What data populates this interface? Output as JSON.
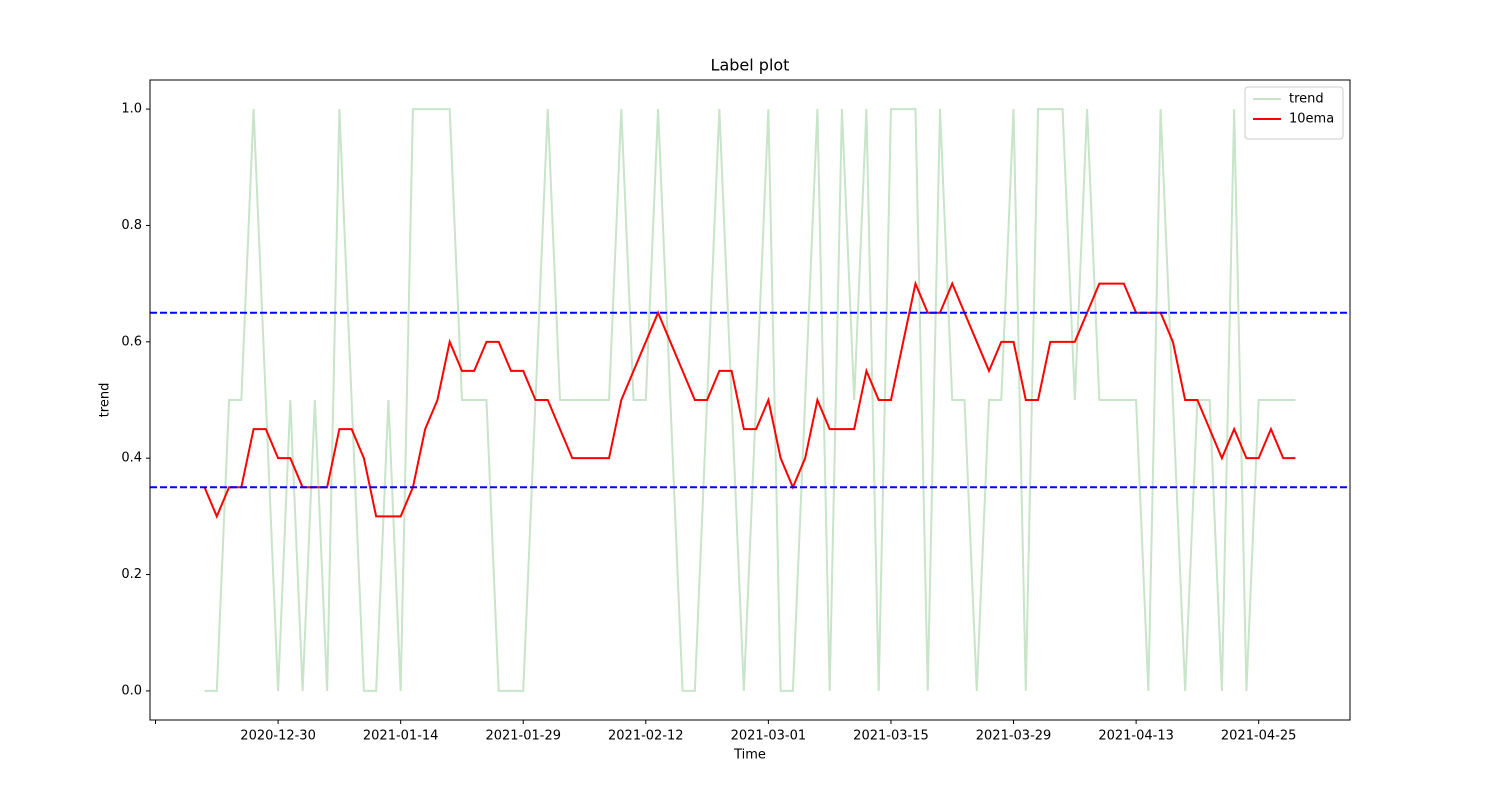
{
  "chart_data": {
    "type": "line",
    "title": "Label plot",
    "xlabel": "Time",
    "ylabel": "trend",
    "x": [
      0,
      1,
      2,
      3,
      4,
      5,
      6,
      7,
      8,
      9,
      10,
      11,
      12,
      13,
      14,
      15,
      16,
      17,
      18,
      19,
      20,
      21,
      22,
      23,
      24,
      25,
      26,
      27,
      28,
      29,
      30,
      31,
      32,
      33,
      34,
      35,
      36,
      37,
      38,
      39,
      40,
      41,
      42,
      43,
      44,
      45,
      46,
      47,
      48,
      49,
      50,
      51,
      52,
      53,
      54,
      55,
      56,
      57,
      58,
      59,
      60,
      61,
      62,
      63,
      64,
      65,
      66,
      67,
      68,
      69,
      70,
      71,
      72,
      73,
      74,
      75,
      76,
      77,
      78,
      79,
      80,
      81,
      82,
      83,
      84,
      85,
      86,
      87,
      88,
      89
    ],
    "series": [
      {
        "name": "trend",
        "color": "#c8e4c9",
        "values": [
          0,
          0,
          0.5,
          0.5,
          1,
          0.5,
          0,
          0.5,
          0,
          0.5,
          0,
          1,
          0.5,
          0,
          0,
          0.5,
          0,
          1,
          1,
          1,
          1,
          0.5,
          0.5,
          0.5,
          0,
          0,
          0,
          0.5,
          1,
          0.5,
          0.5,
          0.5,
          0.5,
          0.5,
          1,
          0.5,
          0.5,
          1,
          0.5,
          0,
          0,
          0.5,
          1,
          0.5,
          0,
          0.5,
          1,
          0,
          0,
          0.5,
          1,
          0,
          1,
          0.5,
          1,
          0,
          1,
          1,
          1,
          0,
          1,
          0.5,
          0.5,
          0,
          0.5,
          0.5,
          1,
          0,
          1,
          1,
          1,
          0.5,
          1,
          0.5,
          0.5,
          0.5,
          0.5,
          0,
          1,
          0.5,
          0,
          0.5,
          0.5,
          0,
          1,
          0,
          0.5,
          0.5,
          0.5,
          0.5
        ]
      },
      {
        "name": "10ema",
        "color": "#ff0000",
        "values": [
          0.35,
          0.3,
          0.35,
          0.35,
          0.45,
          0.45,
          0.4,
          0.4,
          0.35,
          0.35,
          0.35,
          0.45,
          0.45,
          0.4,
          0.3,
          0.3,
          0.3,
          0.35,
          0.45,
          0.5,
          0.6,
          0.55,
          0.55,
          0.6,
          0.6,
          0.55,
          0.55,
          0.5,
          0.5,
          0.45,
          0.4,
          0.4,
          0.4,
          0.4,
          0.5,
          0.55,
          0.6,
          0.65,
          0.6,
          0.55,
          0.5,
          0.5,
          0.55,
          0.55,
          0.45,
          0.45,
          0.5,
          0.4,
          0.35,
          0.4,
          0.5,
          0.45,
          0.45,
          0.45,
          0.55,
          0.5,
          0.5,
          0.6,
          0.7,
          0.65,
          0.65,
          0.7,
          0.65,
          0.6,
          0.55,
          0.6,
          0.6,
          0.5,
          0.5,
          0.6,
          0.6,
          0.6,
          0.65,
          0.7,
          0.7,
          0.7,
          0.65,
          0.65,
          0.65,
          0.6,
          0.5,
          0.5,
          0.45,
          0.4,
          0.45,
          0.4,
          0.4,
          0.45,
          0.4,
          0.4
        ]
      }
    ],
    "hlines": {
      "values": [
        0.65,
        0.35
      ],
      "color": "#0000ff",
      "style": "dashed"
    },
    "xlim": [
      -4.45,
      93.45
    ],
    "ylim": [
      -0.05,
      1.05
    ],
    "xticks": [
      {
        "value": -4,
        "label": null
      },
      {
        "value": 6,
        "label": "2020-12-30"
      },
      {
        "value": 16,
        "label": "2021-01-14"
      },
      {
        "value": 26,
        "label": "2021-01-29"
      },
      {
        "value": 36,
        "label": "2021-02-12"
      },
      {
        "value": 46,
        "label": "2021-03-01"
      },
      {
        "value": 56,
        "label": "2021-03-15"
      },
      {
        "value": 66,
        "label": "2021-03-29"
      },
      {
        "value": 76,
        "label": "2021-04-13"
      },
      {
        "value": 86,
        "label": "2021-04-25"
      }
    ],
    "yticks": [
      {
        "value": 0,
        "label": "0.0"
      },
      {
        "value": 0.2,
        "label": "0.2"
      },
      {
        "value": 0.4,
        "label": "0.4"
      },
      {
        "value": 0.6,
        "label": "0.6"
      },
      {
        "value": 0.8,
        "label": "0.8"
      },
      {
        "value": 1,
        "label": "1.0"
      }
    ],
    "legend": "upper right",
    "grid": false
  }
}
